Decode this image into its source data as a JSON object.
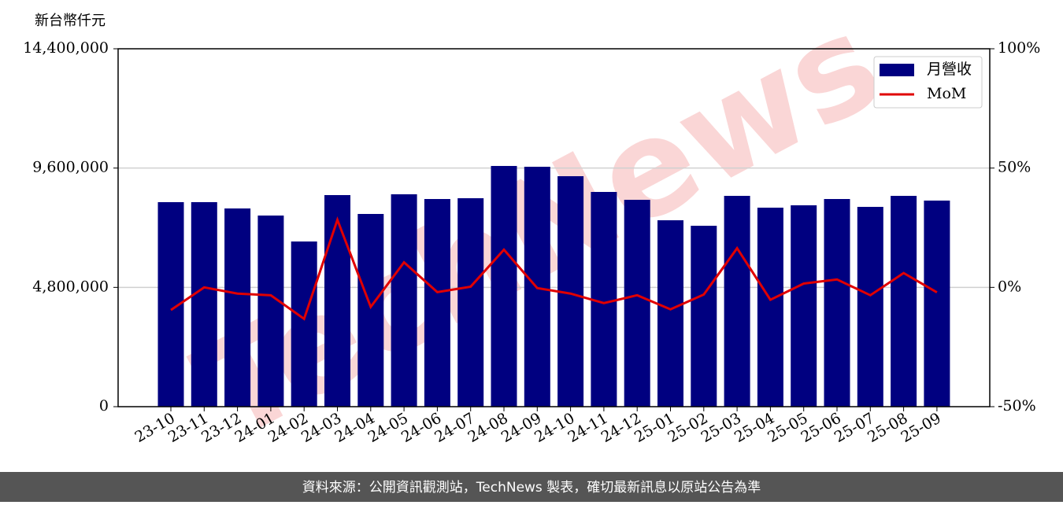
{
  "chart_data": {
    "type": "bar",
    "y_label": "新台幣仟元",
    "watermark": "TechNews",
    "footer": "資料來源：公開資訊觀測站，TechNews 製表，確切最新訊息以原站公告為準",
    "categories": [
      "23-10",
      "23-11",
      "23-12",
      "24-01",
      "24-02",
      "24-03",
      "24-04",
      "24-05",
      "24-06",
      "24-07",
      "24-08",
      "24-09",
      "24-10",
      "24-11",
      "24-12",
      "25-01",
      "25-02",
      "25-03",
      "25-04",
      "25-05",
      "25-06",
      "25-07",
      "25-08",
      "25-09"
    ],
    "series": [
      {
        "name": "月營收",
        "type": "bar",
        "color": "#000080",
        "values": [
          8229000,
          8230000,
          7975000,
          7690000,
          6646000,
          8513000,
          7754000,
          8545000,
          8355000,
          8387000,
          9685000,
          9653000,
          9273000,
          8640000,
          8323000,
          7500000,
          7279000,
          8482000,
          8007000,
          8102000,
          8355000,
          8039000,
          8482000,
          8292000
        ]
      },
      {
        "name": "MoM",
        "type": "line",
        "axis": "y2",
        "color": "#e00000",
        "values": [
          -9.5,
          0,
          -2.6,
          -3.3,
          -13.2,
          28.3,
          -8.2,
          10.5,
          -2,
          0.3,
          15.8,
          -0.3,
          -2.6,
          -6.6,
          -3.3,
          -9.2,
          -3,
          16.4,
          -5.2,
          1.6,
          3.3,
          -3.3,
          6,
          -2.1
        ]
      }
    ],
    "ylim": [
      0,
      14400000
    ],
    "yticks": [
      0,
      {
        "value": 4800000,
        "label": "4,800,000"
      },
      {
        "value": 9600000,
        "label": "9,600,000"
      },
      {
        "value": 14400000,
        "label": "14,400,000"
      }
    ],
    "y2lim": [
      -50,
      100
    ],
    "y2ticks": [
      {
        "value": -50,
        "label": "-50%"
      },
      {
        "value": 0,
        "label": "0%"
      },
      {
        "value": 50,
        "label": "50%"
      },
      {
        "value": 100,
        "label": "100%"
      }
    ],
    "grid": true,
    "legend": "upper right"
  }
}
